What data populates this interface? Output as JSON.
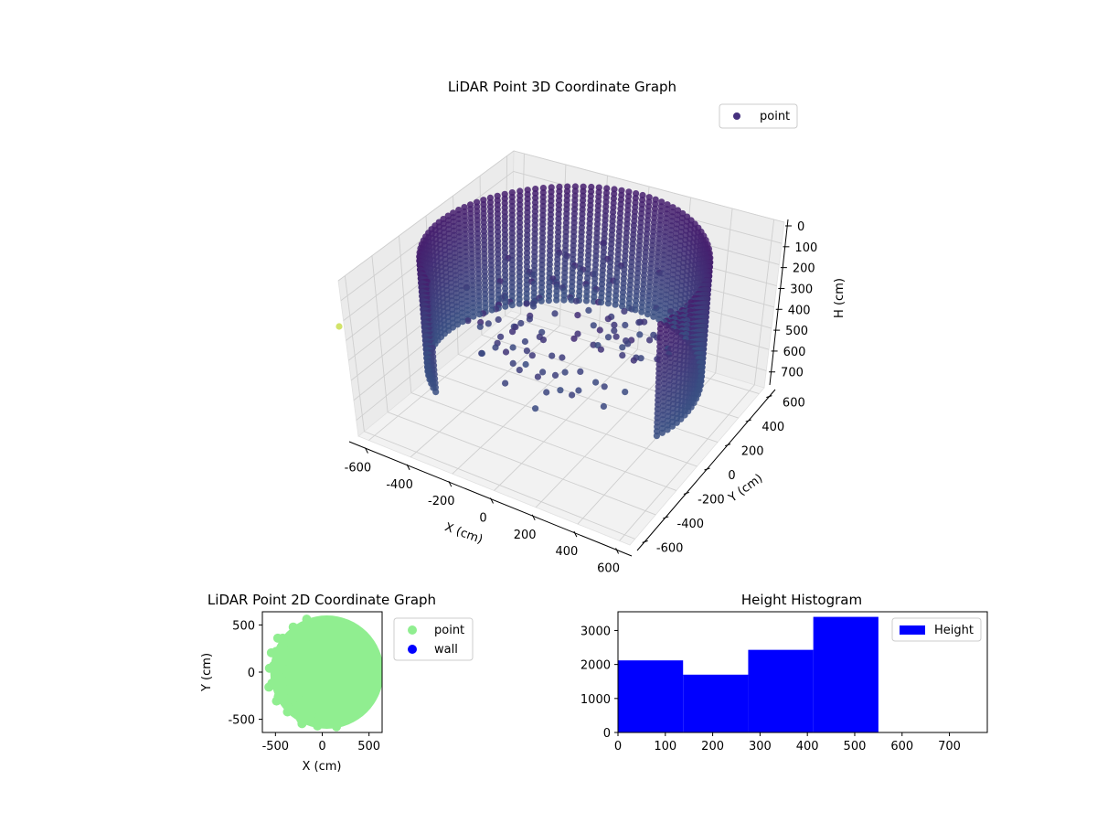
{
  "chart_data": [
    {
      "type": "scatter",
      "title": "LiDAR Point 3D Coordinate Graph",
      "xlabel": "X (cm)",
      "ylabel": "Y (cm)",
      "zlabel": "H (cm)",
      "xticks": [
        -600,
        -400,
        -200,
        0,
        200,
        400,
        600
      ],
      "yticks": [
        600,
        400,
        200,
        0,
        -200,
        -400,
        -600
      ],
      "zticks": [
        0,
        100,
        200,
        300,
        400,
        500,
        600,
        700
      ],
      "xlim": [
        -650,
        650
      ],
      "ylim": [
        -650,
        650
      ],
      "zlim": [
        0,
        780
      ],
      "z_inverted": true,
      "grid": true,
      "legend": {
        "placement": "top-right",
        "entries": [
          {
            "label": "point",
            "color": "#46317e"
          }
        ]
      },
      "colormap": "viridis",
      "series": [
        {
          "name": "point",
          "shape": "ring-wall",
          "radius_cm": 580,
          "angle_range_deg": [
            -20,
            230
          ],
          "height_range_cm": [
            0,
            550
          ]
        }
      ]
    },
    {
      "type": "scatter",
      "title": "LiDAR Point 2D Coordinate Graph",
      "xlabel": "X (cm)",
      "ylabel": "Y (cm)",
      "xticks": [
        -500,
        0,
        500
      ],
      "yticks": [
        500,
        0,
        -500
      ],
      "xlim": [
        -640,
        640
      ],
      "ylim": [
        -640,
        640
      ],
      "legend": {
        "placement": "outside-right",
        "entries": [
          {
            "label": "point",
            "color": "#90ee90"
          },
          {
            "label": "wall",
            "color": "#0000ff"
          }
        ]
      }
    },
    {
      "type": "bar",
      "title": "Height Histogram",
      "xticks": [
        0,
        100,
        200,
        300,
        400,
        500,
        600,
        700
      ],
      "yticks": [
        0,
        1000,
        2000,
        3000
      ],
      "xlim": [
        0,
        780
      ],
      "ylim": [
        0,
        3550
      ],
      "bins": [
        {
          "x0": 0,
          "x1": 137.5,
          "value": 2120
        },
        {
          "x0": 137.5,
          "x1": 275,
          "value": 1700
        },
        {
          "x0": 275,
          "x1": 412.5,
          "value": 2430
        },
        {
          "x0": 412.5,
          "x1": 550,
          "value": 3400
        }
      ],
      "color": "#0000ff",
      "legend": {
        "placement": "top-right",
        "entries": [
          {
            "label": "Height",
            "color": "#0000ff"
          }
        ]
      }
    }
  ]
}
